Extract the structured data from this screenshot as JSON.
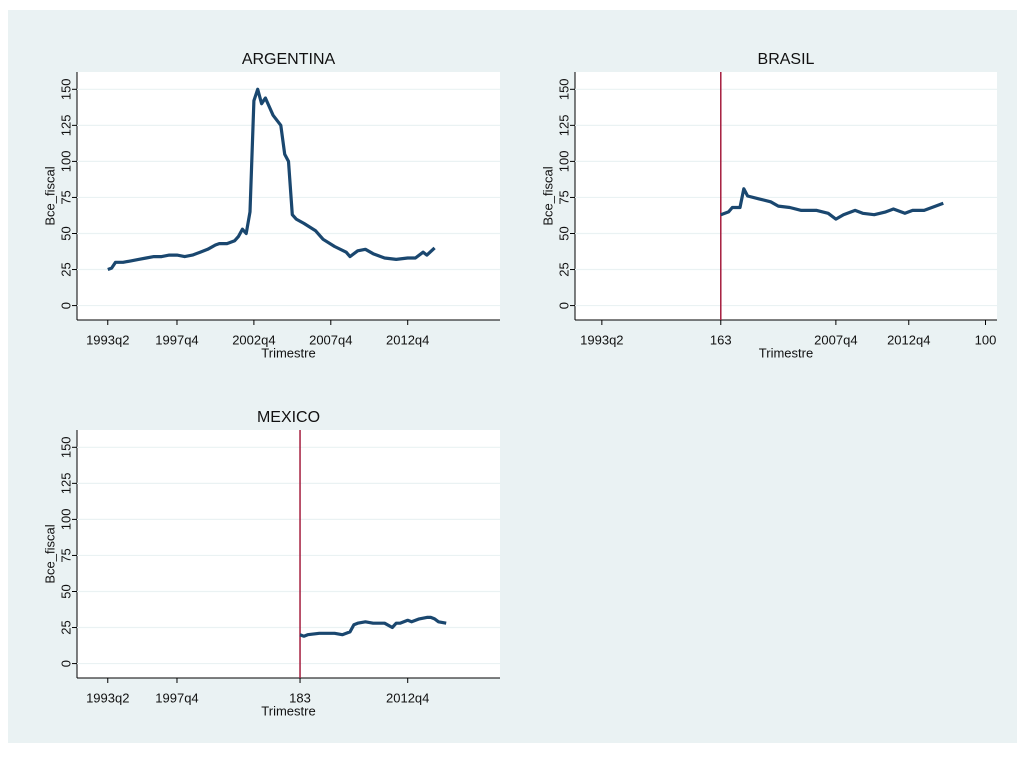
{
  "chart_data": [
    {
      "type": "line",
      "title": "ARGENTINA",
      "x_label": "Trimestre",
      "y_label": "Bce_fiscal",
      "color": "#1a476f",
      "x": [
        133,
        134,
        135,
        137,
        139,
        141,
        143,
        145,
        147,
        149,
        151,
        153,
        155,
        157,
        159,
        161,
        162,
        164,
        166,
        167,
        168,
        169,
        170,
        171,
        172,
        173,
        174,
        176,
        178,
        179,
        180,
        181,
        182,
        184,
        187,
        189,
        192,
        195,
        196,
        198,
        200,
        202,
        205,
        208,
        211,
        213,
        215,
        216,
        218
      ],
      "values": [
        25,
        26,
        30,
        30,
        31,
        32,
        33,
        34,
        34,
        35,
        35,
        34,
        35,
        37,
        39,
        42,
        43,
        43,
        45,
        48,
        53,
        50,
        65,
        142,
        150,
        140,
        144,
        132,
        125,
        105,
        100,
        63,
        60,
        57,
        52,
        46,
        41,
        37,
        34,
        38,
        39,
        36,
        33,
        32,
        33,
        33,
        37,
        35,
        40
      ],
      "xlim": [
        125,
        235
      ],
      "ylim": [
        -10,
        162
      ],
      "xticks": [
        {
          "value": 133,
          "label": "1993q2"
        },
        {
          "value": 151,
          "label": "1997q4"
        },
        {
          "value": 171,
          "label": "2002q4"
        },
        {
          "value": 191,
          "label": "2007q4"
        },
        {
          "value": 211,
          "label": "2012q4"
        }
      ],
      "yticks": [
        0,
        25,
        50,
        75,
        100,
        125,
        150
      ],
      "grid": true
    },
    {
      "type": "line",
      "title": "BRASIL",
      "x_label": "Trimestre",
      "y_label": "Bce_fiscal",
      "color": "#1a476f",
      "x": [
        163,
        165,
        166,
        168,
        169,
        170,
        173,
        176,
        178,
        181,
        184,
        188,
        191,
        193,
        195,
        198,
        200,
        203,
        206,
        208,
        211,
        213,
        216,
        219,
        221
      ],
      "values": [
        63,
        65,
        68,
        68,
        81,
        76,
        74,
        72,
        69,
        68,
        66,
        66,
        64,
        60,
        63,
        66,
        64,
        63,
        65,
        67,
        64,
        66,
        66,
        69,
        71
      ],
      "xlim": [
        125,
        235
      ],
      "ylim": [
        -10,
        162
      ],
      "xticks": [
        {
          "value": 132,
          "label": "1993q2"
        },
        163,
        {
          "value": 193,
          "label": "2007q4"
        },
        {
          "value": 212,
          "label": "2012q4"
        },
        {
          "value": 232,
          "label": "100"
        }
      ],
      "yticks": [
        0,
        25,
        50,
        75,
        100,
        125,
        150
      ],
      "grid": true,
      "xline": 163,
      "xline_color": "#a51d3e"
    },
    {
      "type": "line",
      "title": "MEXICO",
      "x_label": "Trimestre",
      "y_label": "Bce_fiscal",
      "color": "#1a476f",
      "x": [
        183,
        184,
        185,
        188,
        192,
        194,
        196,
        197,
        198,
        200,
        202,
        205,
        207,
        208,
        209,
        211,
        212,
        214,
        216,
        217,
        218,
        219,
        221
      ],
      "values": [
        20,
        19,
        20,
        21,
        21,
        20,
        22,
        27,
        28,
        29,
        28,
        28,
        25,
        28,
        28,
        30,
        29,
        31,
        32,
        32,
        31,
        29,
        28
      ],
      "xlim": [
        125,
        235
      ],
      "ylim": [
        -10,
        162
      ],
      "xticks": [
        {
          "value": 133,
          "label": "1993q2"
        },
        {
          "value": 151,
          "label": "1997q4"
        },
        183,
        {
          "value": 211,
          "label": "2012q4"
        }
      ],
      "yticks": [
        0,
        25,
        50,
        75,
        100,
        125,
        150
      ],
      "grid": true,
      "xline": 183,
      "xline_color": "#a51d3e"
    }
  ]
}
